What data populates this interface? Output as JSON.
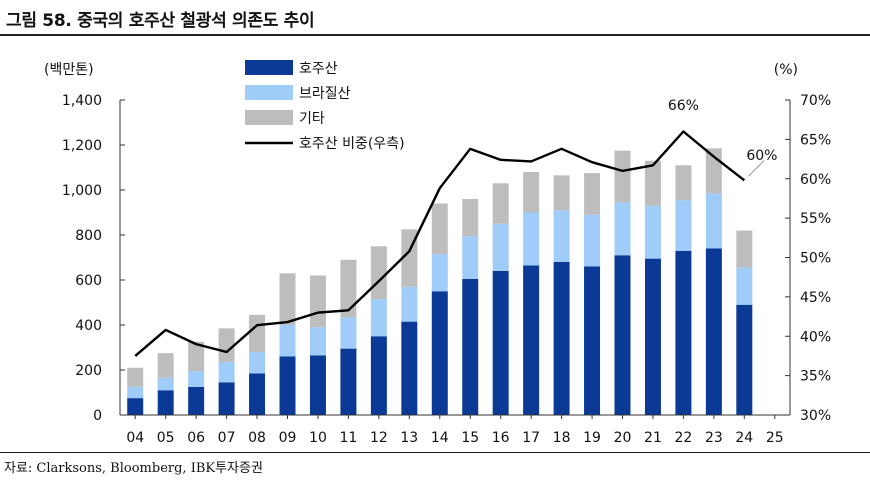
{
  "header": {
    "title": "그림 58. 중국의 호주산 철광석 의존도 추이"
  },
  "footer": {
    "source": "자료: Clarksons, Bloomberg, IBK투자증권"
  },
  "chart_data": {
    "type": "bar",
    "stacked": true,
    "categories": [
      "04",
      "05",
      "06",
      "07",
      "08",
      "09",
      "10",
      "11",
      "12",
      "13",
      "14",
      "15",
      "16",
      "17",
      "18",
      "19",
      "20",
      "21",
      "22",
      "23",
      "24",
      "25"
    ],
    "y_left": {
      "unit_label": "(백만톤)",
      "ylim": [
        0,
        1400
      ],
      "ticks": [
        "0",
        "200",
        "400",
        "600",
        "800",
        "1,000",
        "1,200",
        "1,400"
      ]
    },
    "y_right": {
      "unit_label": "(%)",
      "ylim": [
        30,
        70
      ],
      "ticks": [
        "30%",
        "35%",
        "40%",
        "45%",
        "50%",
        "55%",
        "60%",
        "65%",
        "70%"
      ]
    },
    "series": [
      {
        "name": "호주산",
        "kind": "bar",
        "color": "#0a3a96",
        "values": [
          75,
          110,
          125,
          145,
          185,
          260,
          265,
          295,
          350,
          415,
          550,
          605,
          640,
          665,
          680,
          660,
          710,
          695,
          730,
          740,
          490,
          null
        ]
      },
      {
        "name": "브라질산",
        "kind": "bar",
        "color": "#9fccf8",
        "values": [
          50,
          55,
          70,
          90,
          95,
          140,
          125,
          140,
          165,
          155,
          165,
          190,
          210,
          235,
          230,
          230,
          235,
          235,
          225,
          245,
          165,
          null
        ]
      },
      {
        "name": "기타",
        "kind": "bar",
        "color": "#bdbdbd",
        "values": [
          85,
          110,
          130,
          150,
          165,
          230,
          230,
          255,
          235,
          255,
          225,
          165,
          180,
          180,
          155,
          185,
          230,
          200,
          155,
          200,
          165,
          null
        ]
      },
      {
        "name": "호주산 비중(우측)",
        "kind": "line",
        "axis": "right",
        "color": "#000000",
        "values": [
          37.5,
          40.8,
          39.0,
          38.0,
          41.4,
          41.8,
          43.0,
          43.3,
          47.0,
          50.8,
          58.8,
          63.8,
          62.4,
          62.2,
          63.8,
          62.1,
          61.0,
          61.7,
          66.0,
          62.8,
          59.8,
          null
        ]
      }
    ],
    "annotations": [
      {
        "text": "66%",
        "x": "22"
      },
      {
        "text": "60%",
        "x": "24"
      }
    ],
    "legend_position": "top-center",
    "grid": false
  }
}
